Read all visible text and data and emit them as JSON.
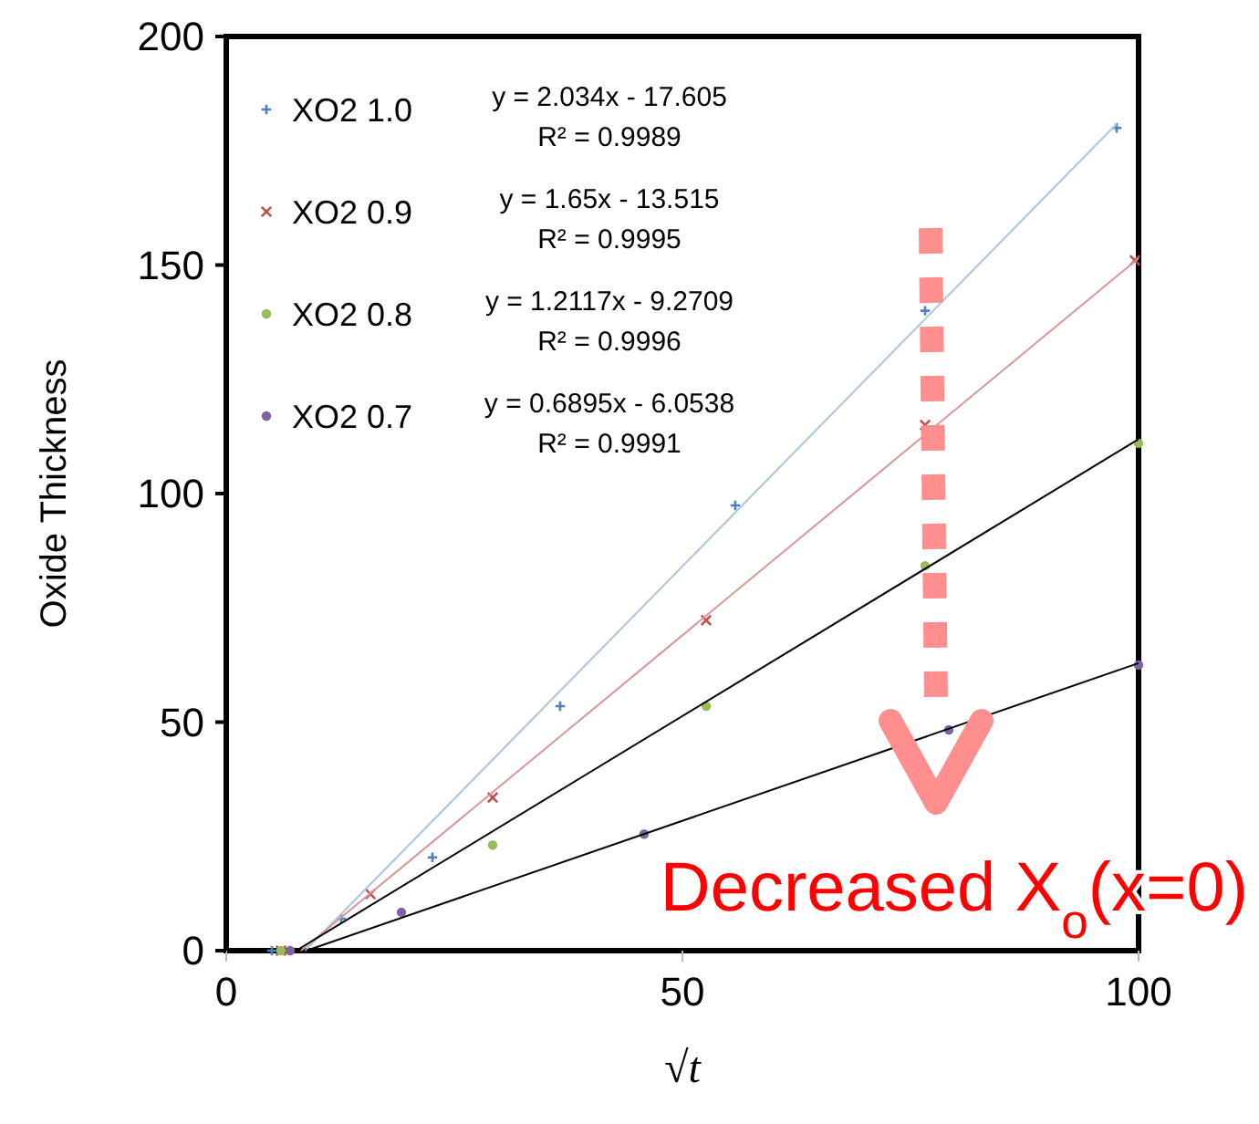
{
  "chart_data": {
    "type": "scatter",
    "xlabel": "√t",
    "ylabel": "Oxide Thickness",
    "xlim": [
      0,
      100
    ],
    "ylim": [
      0,
      200
    ],
    "xticks": [
      0,
      50,
      100
    ],
    "yticks": [
      0,
      50,
      100,
      150,
      200
    ],
    "grid": false,
    "legend": "top left",
    "series": [
      {
        "name": "XO2 1.0",
        "color": "#4f81bd",
        "marker": "cross",
        "x": [
          5,
          12.6,
          22.6,
          36.6,
          55.8,
          76.6,
          97.6
        ],
        "values": [
          0,
          7,
          20.4,
          53.5,
          97.4,
          140,
          180
        ]
      },
      {
        "name": "XO2 0.9",
        "color": "#c0504d",
        "marker": "x",
        "x": [
          6,
          15.8,
          29.2,
          52.6,
          76.6,
          99.6
        ],
        "values": [
          0,
          12.4,
          33.5,
          72.3,
          115,
          151
        ]
      },
      {
        "name": "XO2 0.8",
        "color": "#9bbb59",
        "marker": "circle",
        "x": [
          6,
          29.2,
          52.6,
          76.6,
          100
        ],
        "values": [
          0,
          23.1,
          53.5,
          84.2,
          111
        ]
      },
      {
        "name": "XO2 0.7",
        "color": "#8064a2",
        "marker": "circle",
        "x": [
          7,
          19.2,
          45.8,
          79.2,
          100
        ],
        "values": [
          0,
          8.4,
          25.5,
          48.3,
          62.5
        ]
      },
      {
        "type": "line",
        "color": "#a9c4e4",
        "x": [
          8.655,
          97.6
        ],
        "values": [
          0,
          180.9
        ]
      },
      {
        "type": "line",
        "color": "#d99694",
        "x": [
          8.191,
          100
        ],
        "values": [
          0,
          151.5
        ]
      },
      {
        "type": "line",
        "color": "#000000",
        "x": [
          7.652,
          100
        ],
        "values": [
          0,
          111.9
        ]
      },
      {
        "type": "line",
        "color": "#000000",
        "x": [
          8.78,
          100
        ],
        "values": [
          0,
          62.9
        ]
      }
    ],
    "annotations": [
      "y = 2.034x - 17.605",
      "R² = 0.9989",
      "y = 1.65x - 13.515",
      "R² = 0.9995",
      "y = 1.2117x - 9.2709",
      "R² = 0.9996",
      "y = 0.6895x - 6.0538",
      "R² = 0.9991",
      "Decreased X$_{o}$(x=0)"
    ]
  }
}
